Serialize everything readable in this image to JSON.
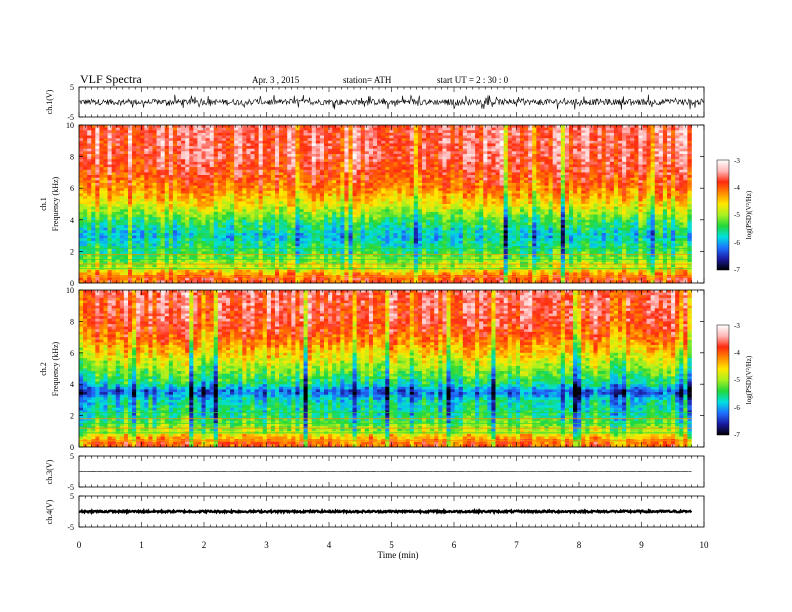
{
  "header": {
    "title": "VLF  Spectra",
    "date": "Apr. 3  , 2015",
    "station": "station= ATH",
    "start": "start  UT  =   2  : 30 : 0"
  },
  "colorbar": {
    "label": "log(PSD)(V²/Hz)",
    "ticks": [
      "-3",
      "-4",
      "-5",
      "-6",
      "-7"
    ],
    "colors": [
      "#000000",
      "#1a1aa0",
      "#1f6fff",
      "#00e0e0",
      "#22d83a",
      "#a8f020",
      "#ffe800",
      "#ff8a00",
      "#ff2a10",
      "#ffb8b8",
      "#ffffff"
    ]
  },
  "chart_data": [
    {
      "type": "line",
      "name": "ch1-waveform",
      "ylabel": "ch.1(V)",
      "ylim": [
        -5,
        5
      ],
      "yticks": [
        "5",
        "-5"
      ],
      "xlim": [
        0,
        10
      ],
      "description_values": {
        "baseline": 0.0,
        "typical_amplitude": 1.0,
        "spike_amplitude": 2.5
      }
    },
    {
      "type": "heatmap",
      "name": "ch1-spectrogram",
      "ylabel_channel": "ch.1",
      "ylabel": "Frequency  (kHz)",
      "ylim": [
        0,
        10
      ],
      "yticks": [
        "0",
        "2",
        "4",
        "6",
        "8",
        "10"
      ],
      "xlim": [
        0,
        9.8
      ],
      "zlim": [
        -7,
        -3
      ],
      "profile_khz": [
        0.3,
        1,
        2,
        3,
        4,
        5,
        6,
        7,
        8,
        10
      ],
      "profile_logpsd": [
        -3.9,
        -4.8,
        -5.4,
        -5.8,
        -5.3,
        -4.6,
        -4.1,
        -3.8,
        -3.6,
        -3.6
      ]
    },
    {
      "type": "heatmap",
      "name": "ch2-spectrogram",
      "ylabel_channel": "ch.2",
      "ylabel": "Frequency  (kHz)",
      "ylim": [
        0,
        10
      ],
      "yticks": [
        "0",
        "2",
        "4",
        "6",
        "8",
        "10"
      ],
      "xlim": [
        0,
        9.8
      ],
      "zlim": [
        -7,
        -3
      ],
      "profile_khz": [
        0.3,
        1,
        2,
        3,
        3.5,
        4,
        5,
        6,
        7,
        8,
        10
      ],
      "profile_logpsd": [
        -4.0,
        -4.9,
        -5.5,
        -5.7,
        -6.3,
        -5.6,
        -5.0,
        -4.5,
        -4.0,
        -3.7,
        -3.6
      ]
    },
    {
      "type": "line",
      "name": "ch3-waveform",
      "ylabel": "ch.3(V)",
      "ylim": [
        -5,
        5
      ],
      "yticks": [
        "5",
        "-5"
      ],
      "xlim": [
        0,
        9.8
      ],
      "description_values": {
        "baseline": 0.0,
        "typical_amplitude": 0.05
      }
    },
    {
      "type": "line",
      "name": "ch4-waveform",
      "ylabel": "ch.4(V)",
      "ylim": [
        -5,
        5
      ],
      "yticks": [
        "5",
        "-5"
      ],
      "xlim": [
        0,
        9.8
      ],
      "description_values": {
        "baseline": 0.0,
        "typical_amplitude": 0.3
      }
    }
  ],
  "xaxis": {
    "label": "Time  (min)",
    "ticks": [
      "0",
      "1",
      "2",
      "3",
      "4",
      "5",
      "6",
      "7",
      "8",
      "9",
      "10"
    ],
    "xlim": [
      0,
      10
    ]
  }
}
